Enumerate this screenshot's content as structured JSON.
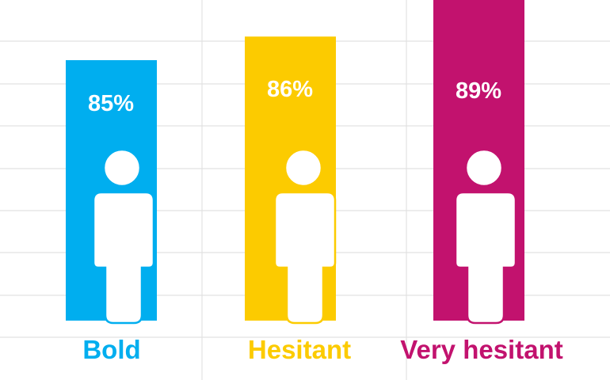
{
  "chart_data": {
    "type": "bar",
    "title": "",
    "xlabel": "",
    "ylabel": "",
    "categories": [
      "Bold",
      "Hesitant",
      "Very hesitant"
    ],
    "values": [
      85,
      86,
      89
    ],
    "value_labels": [
      "85%",
      "86%",
      "89%"
    ],
    "colors": [
      "#00aeef",
      "#fccb00",
      "#c2126e"
    ],
    "icon": "person-icon",
    "grid": true,
    "legend": "none"
  }
}
